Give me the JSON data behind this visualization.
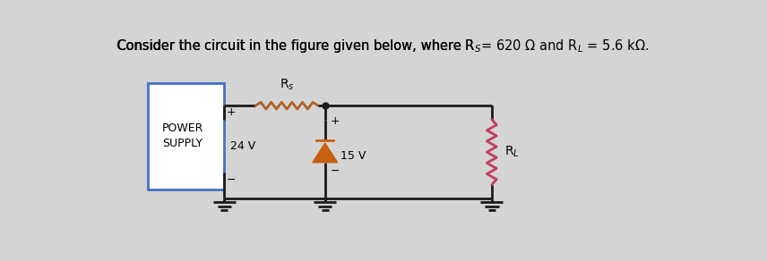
{
  "bg_color": "#d4d4d4",
  "title_text": "Consider the circuit in the figure given below, where Rₛ= 620 Ω and Rₗ = 5.6 kΩ.",
  "title_fontsize": 10.5,
  "power_supply_label": "POWER\nSUPPLY",
  "voltage_24": "24 V",
  "voltage_15": "15 V",
  "rs_label": "R$_s$",
  "rl_label": "R$_L$",
  "rs_color": "#b06020",
  "rl_color": "#c04060",
  "wire_color": "#1a1a1a",
  "box_color": "#4472c4",
  "arrow_fill": "#c86010",
  "lw": 2.0,
  "res_lw": 2.0
}
